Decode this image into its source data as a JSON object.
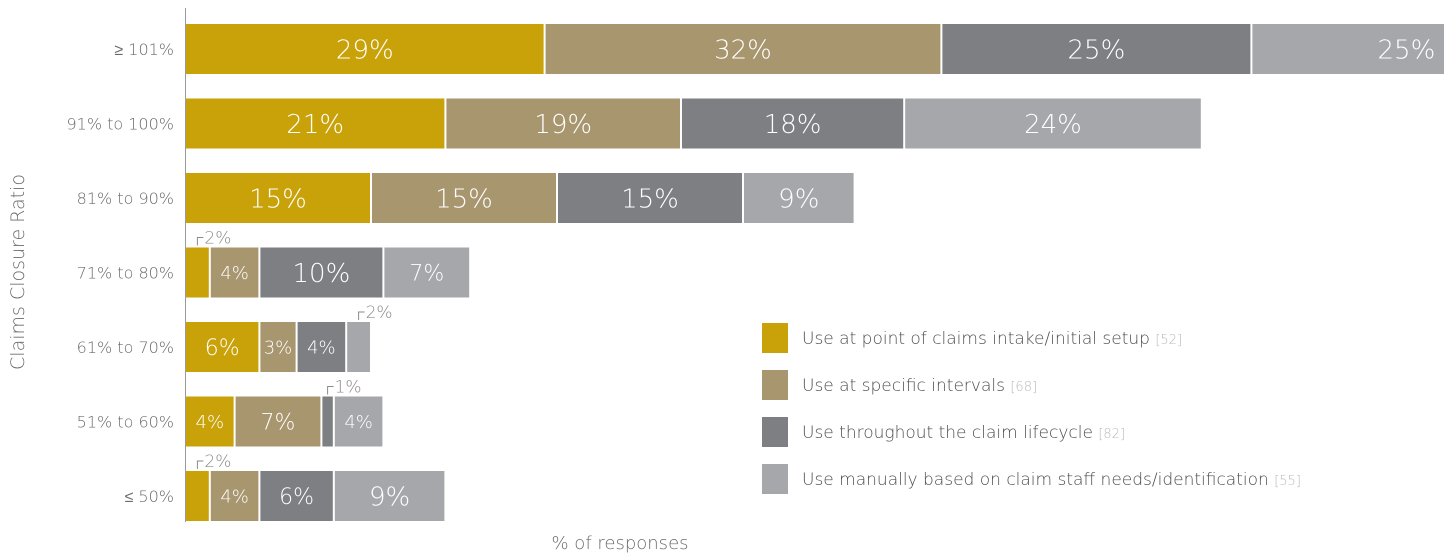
{
  "chart_data": {
    "type": "bar",
    "orientation": "horizontal",
    "stacked": true,
    "ylabel": "Claims Closure Ratio",
    "xlabel": "% of responses",
    "categories": [
      "≥ 101%",
      "91% to 100%",
      "81% to 90%",
      "71% to 80%",
      "61% to 70%",
      "51% to 60%",
      "≤ 50%"
    ],
    "series": [
      {
        "name": "Use at point of claims intake/initial setup",
        "count": "[52]",
        "color": "#C9A20A",
        "values": [
          29,
          21,
          15,
          2,
          6,
          4,
          2
        ]
      },
      {
        "name": "Use at specific intervals",
        "count": "[68]",
        "color": "#A8966F",
        "values": [
          32,
          19,
          15,
          4,
          3,
          7,
          4
        ]
      },
      {
        "name": "Use throughout the claim lifecycle",
        "count": "[82]",
        "color": "#7E7F83",
        "values": [
          25,
          18,
          15,
          10,
          4,
          1,
          6
        ]
      },
      {
        "name": "Use manually based on claim staff needs/identification",
        "count": "[55]",
        "color": "#A6A7AB",
        "values": [
          25,
          24,
          9,
          7,
          2,
          4,
          9
        ]
      }
    ],
    "value_labels": [
      [
        "29%",
        "32%",
        "25%",
        "25%"
      ],
      [
        "21%",
        "19%",
        "18%",
        "24%"
      ],
      [
        "15%",
        "15%",
        "15%",
        "9%"
      ],
      [
        "2%",
        "4%",
        "10%",
        "7%"
      ],
      [
        "6%",
        "3%",
        "4%",
        "2%"
      ],
      [
        "4%",
        "7%",
        "1%",
        "4%"
      ],
      [
        "2%",
        "4%",
        "6%",
        "9%"
      ]
    ],
    "legend_position": "bottom-right",
    "grid": false
  }
}
